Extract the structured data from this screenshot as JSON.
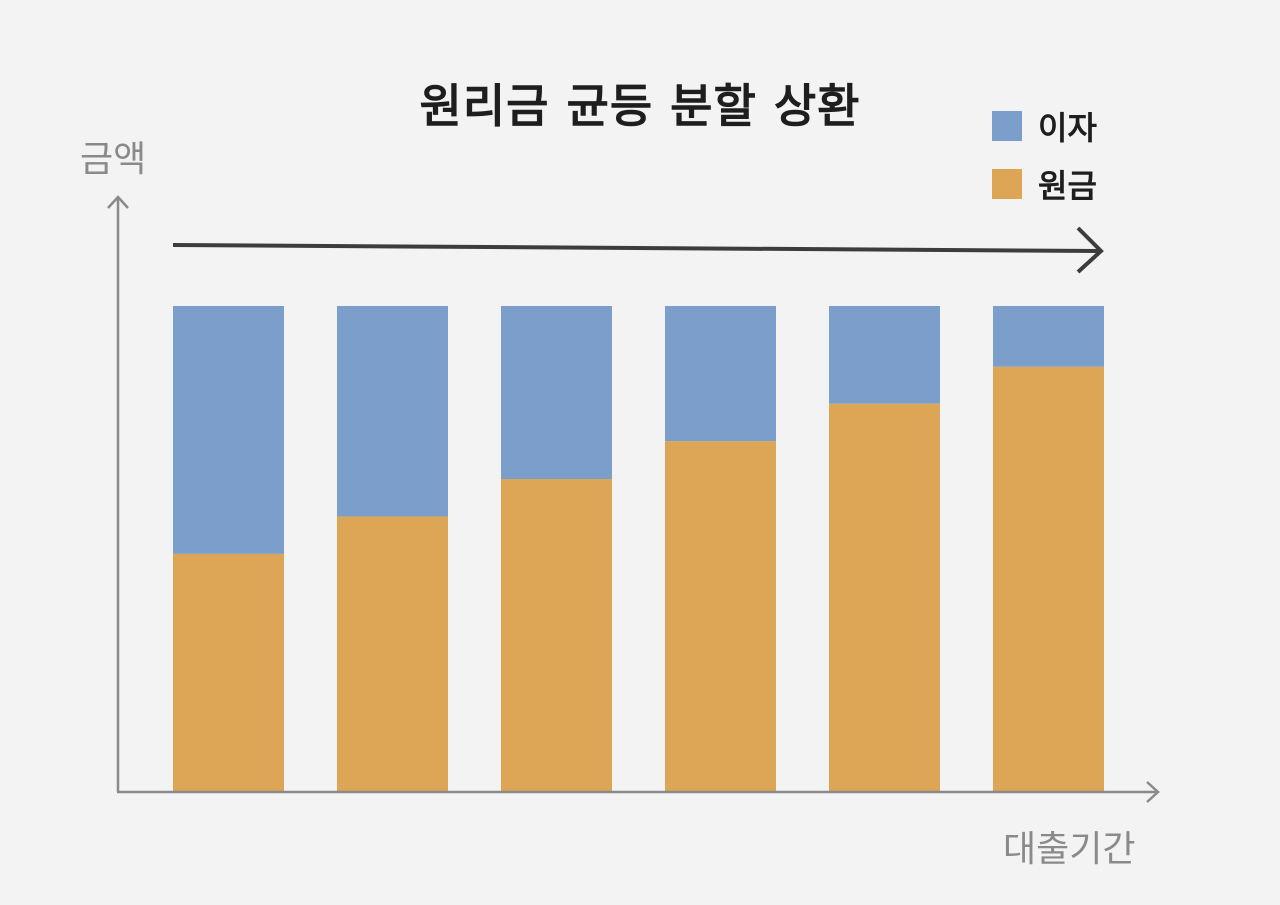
{
  "chart_data": {
    "type": "bar",
    "stacked": true,
    "title": "원리금 균등 분할 상환",
    "ylabel": "금액",
    "xlabel": "대출기간",
    "categories": [
      "",
      "",
      "",
      "",
      "",
      ""
    ],
    "series": [
      {
        "name": "원금",
        "color": "#dca656",
        "values": [
          49,
          56.7,
          64.4,
          72.2,
          79.9,
          87.5
        ]
      },
      {
        "name": "이자",
        "color": "#7b9ecb",
        "values": [
          51,
          43.3,
          35.6,
          27.8,
          20.1,
          12.5
        ]
      }
    ],
    "ylim": [
      0,
      100
    ],
    "grid": false,
    "legend_position": "top-right",
    "annotation": "arrow-right"
  },
  "legend": {
    "interest_label": "이자",
    "principal_label": "원금"
  },
  "colors": {
    "principal": "#dca656",
    "interest": "#7b9ecb",
    "axis": "#8a8a8a",
    "arrow": "#3c3c3c"
  }
}
